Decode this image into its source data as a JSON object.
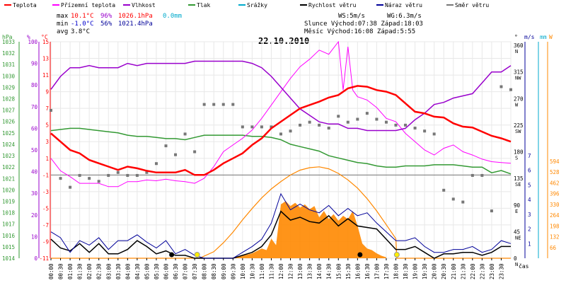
{
  "chart_data": {
    "type": "line",
    "title": "22.10.2010",
    "xlabel": "čas",
    "legend": [
      {
        "name": "Teplota",
        "color": "#ff0000"
      },
      {
        "name": "Přízemní teplota",
        "color": "#ff00ff"
      },
      {
        "name": "Vlhkost",
        "color": "#9900cc"
      },
      {
        "name": "Tlak",
        "color": "#339933"
      },
      {
        "name": "Srážky",
        "color": "#00aacc"
      },
      {
        "name": "Rychlost větru",
        "color": "#000000"
      },
      {
        "name": "Náraz větru",
        "color": "#000099"
      },
      {
        "name": "Směr větru",
        "color": "#777777"
      }
    ],
    "stats": {
      "max": {
        "label": "max",
        "temp": "10.1°C",
        "hum": "96%",
        "press": "1026.1hPa",
        "rain": "0.0mm"
      },
      "min": {
        "label": "min",
        "temp": "-1.0°C",
        "hum": "56%",
        "press": "1021.4hPa"
      },
      "avg": {
        "label": "avg",
        "temp": "3.8°C"
      }
    },
    "info": {
      "ws": "WS:5m/s",
      "wg": "WG:6.3m/s",
      "sun": "Slunce Východ:07:38  Západ:18:03",
      "moon": "Měsíc  Východ:16:08  Západ:5:55"
    },
    "axes_units": {
      "press": "hPa",
      "hum": "%",
      "temp": "°C",
      "dir": "°",
      "wind": "m/s",
      "rain": "mm",
      "solar": "W"
    },
    "axis_ticks": {
      "press": [
        "1033",
        "1032",
        "1031",
        "1030",
        "1029",
        "1028",
        "1027",
        "1026",
        "1025",
        "1024",
        "1023",
        "1022",
        "1021",
        "1020",
        "1019",
        "1018",
        "1017",
        "1016",
        "1015",
        "1014"
      ],
      "hum": [
        "100",
        "90",
        "80",
        "70",
        "60",
        "50",
        "40",
        "30",
        "20",
        "10",
        "0"
      ],
      "temp": [
        "15",
        "13",
        "11",
        "9",
        "7",
        "5",
        "3",
        "1",
        "-1",
        "-3",
        "-5",
        "-7",
        "-9",
        "-11"
      ],
      "dir": [
        "360 N",
        "315 NW",
        "270 W",
        "225 SW",
        "180 S",
        "135 SE",
        "90 E",
        "45 NE",
        "0 N"
      ],
      "wind": [
        "7",
        "6",
        "5",
        "4",
        "3",
        "2",
        "1"
      ],
      "solar": [
        "594",
        "528",
        "462",
        "396",
        "330",
        "264",
        "198",
        "132",
        "66"
      ]
    },
    "x_ticks": [
      "00:00",
      "00:30",
      "01:00",
      "01:30",
      "02:00",
      "02:30",
      "03:00",
      "03:30",
      "04:00",
      "04:30",
      "05:00",
      "05:30",
      "06:00",
      "06:30",
      "07:00",
      "07:30",
      "08:00",
      "08:30",
      "09:00",
      "09:30",
      "10:00",
      "10:30",
      "11:00",
      "11:30",
      "12:00",
      "12:30",
      "13:00",
      "13:30",
      "14:00",
      "14:30",
      "15:00",
      "15:30",
      "16:00",
      "16:30",
      "17:00",
      "17:30",
      "18:00",
      "18:30",
      "19:00",
      "19:30",
      "20:00",
      "20:30",
      "21:00",
      "21:30",
      "22:00",
      "22:30",
      "23:00",
      "23:30"
    ],
    "temp_range": [
      -11,
      15
    ],
    "series": [
      {
        "key": "temp",
        "color": "#ff0000",
        "x": [
          0,
          0.5,
          1,
          1.5,
          2,
          2.5,
          3,
          3.5,
          4,
          4.5,
          5,
          5.5,
          6,
          6.5,
          7,
          7.5,
          8,
          8.5,
          9,
          9.5,
          10,
          10.5,
          11,
          11.5,
          12,
          12.5,
          13,
          13.5,
          14,
          14.5,
          15,
          15.5,
          16,
          16.5,
          17,
          17.5,
          18,
          18.5,
          19,
          19.5,
          20,
          20.5,
          21,
          21.5,
          22,
          22.5,
          23,
          23.5,
          24
        ],
        "y": [
          4,
          3,
          2,
          1.6,
          0.8,
          0.4,
          0,
          -0.4,
          0,
          -0.2,
          -0.5,
          -0.7,
          -0.7,
          -0.7,
          -0.4,
          -1,
          -1,
          -0.4,
          0.4,
          1,
          1.6,
          2.6,
          3.4,
          4.6,
          5.4,
          6.2,
          7,
          7.4,
          7.8,
          8.3,
          8.6,
          9.4,
          9.7,
          9.6,
          9.2,
          9,
          8.6,
          7.6,
          6.6,
          6.4,
          6,
          5.9,
          5.2,
          4.8,
          4.7,
          4.2,
          3.7,
          3.4,
          3
        ]
      },
      {
        "key": "ground",
        "color": "#ff00ff",
        "x": [
          0,
          0.5,
          1,
          1.5,
          2,
          2.5,
          3,
          3.5,
          4,
          4.5,
          5,
          5.5,
          6,
          6.5,
          7,
          7.5,
          8,
          8.5,
          9,
          9.5,
          10,
          10.5,
          11,
          11.5,
          12,
          12.5,
          13,
          13.5,
          14,
          14.5,
          15,
          15.25,
          15.5,
          15.75,
          16,
          16.5,
          17,
          17.5,
          18,
          18.5,
          19,
          19.5,
          20,
          20.5,
          21,
          21.5,
          22,
          22.5,
          23,
          23.5,
          24
        ],
        "y": [
          1,
          -0.5,
          -1.2,
          -2,
          -2,
          -2,
          -2.4,
          -2.4,
          -1.8,
          -1.8,
          -1.6,
          -1.7,
          -1.5,
          -1.7,
          -1.8,
          -2,
          -1.4,
          0,
          1.8,
          2.6,
          3.4,
          4.4,
          5.8,
          7.4,
          9,
          10.6,
          12,
          12.9,
          14,
          13.5,
          15,
          9.2,
          14.4,
          9.2,
          8.4,
          8,
          7.1,
          5.8,
          5.4,
          4,
          3,
          2,
          1.4,
          2.2,
          2.6,
          1.8,
          1.4,
          0.9,
          0.6,
          0.5,
          0.4
        ]
      },
      {
        "key": "hum",
        "color": "#9900cc",
        "x": [
          0,
          0.5,
          1,
          1.5,
          2,
          2.5,
          3,
          3.5,
          4,
          4.5,
          5,
          5.5,
          6,
          6.5,
          7,
          7.5,
          8,
          8.5,
          9,
          9.5,
          10,
          10.5,
          11,
          11.5,
          12,
          12.5,
          13,
          13.5,
          14,
          14.5,
          15,
          15.5,
          16,
          16.5,
          17,
          17.5,
          18,
          18.5,
          19,
          19.5,
          20,
          20.5,
          21,
          21.5,
          22,
          22.5,
          23,
          23.5,
          24
        ],
        "y": [
          78,
          84,
          88,
          88,
          89,
          88,
          88,
          88,
          90,
          89,
          90,
          90,
          90,
          90,
          90,
          91,
          91,
          91,
          91,
          91,
          91,
          90,
          88,
          84,
          79,
          74,
          69,
          66,
          63,
          62,
          62,
          60,
          60,
          59,
          59,
          59,
          59,
          60,
          64,
          67,
          71,
          72,
          74,
          75,
          76,
          81,
          86,
          86,
          89
        ]
      },
      {
        "key": "press",
        "color": "#339933",
        "x": [
          0,
          0.5,
          1,
          1.5,
          2,
          2.5,
          3,
          3.5,
          4,
          4.5,
          5,
          5.5,
          6,
          6.5,
          7,
          7.5,
          8,
          8.5,
          9,
          9.5,
          10,
          10.5,
          11,
          11.5,
          12,
          12.5,
          13,
          13.5,
          14,
          14.5,
          15,
          15.5,
          16,
          16.5,
          17,
          17.5,
          18,
          18.5,
          19,
          19.5,
          20,
          20.5,
          21,
          21.5,
          22,
          22.5,
          23,
          23.5,
          24
        ],
        "y": [
          1025.2,
          1025.3,
          1025.4,
          1025.4,
          1025.3,
          1025.2,
          1025.1,
          1025.0,
          1024.8,
          1024.7,
          1024.7,
          1024.6,
          1024.5,
          1024.5,
          1024.4,
          1024.6,
          1024.8,
          1024.8,
          1024.8,
          1024.8,
          1024.8,
          1024.7,
          1024.7,
          1024.6,
          1024.4,
          1024.0,
          1023.8,
          1023.6,
          1023.4,
          1023.0,
          1022.8,
          1022.6,
          1022.4,
          1022.3,
          1022.1,
          1022.0,
          1022.0,
          1022.1,
          1022.1,
          1022.1,
          1022.2,
          1022.2,
          1022.2,
          1022.1,
          1022.0,
          1022.0,
          1021.5,
          1021.7,
          1021.4
        ]
      },
      {
        "key": "wind",
        "color": "#000000",
        "x": [
          0,
          0.5,
          1,
          1.5,
          2,
          2.5,
          3,
          3.5,
          4,
          4.5,
          5,
          5.5,
          6,
          6.5,
          7,
          7.5,
          8,
          8.5,
          9,
          9.5,
          10,
          10.5,
          11,
          11.5,
          12,
          12.5,
          13,
          13.5,
          14,
          14.5,
          15,
          15.5,
          16,
          16.5,
          17,
          17.5,
          18,
          18.5,
          19,
          19.5,
          20,
          20.5,
          21,
          21.5,
          22,
          22.5,
          23,
          23.5,
          24
        ],
        "y": [
          1.3,
          0.7,
          0.5,
          1.0,
          0.4,
          1.0,
          0.3,
          0.3,
          0.6,
          1.2,
          0.8,
          0.3,
          0.5,
          0.2,
          0.2,
          0,
          0,
          0,
          0,
          0,
          0.2,
          0.4,
          0.8,
          1.6,
          3.2,
          2.6,
          2.8,
          2.5,
          2.4,
          2.9,
          2.2,
          2.7,
          2.2,
          2.1,
          2.0,
          1.3,
          0.6,
          0.6,
          0.8,
          0.4,
          0,
          0.3,
          0.3,
          0.4,
          0.4,
          0.2,
          0.4,
          0.8,
          0.8
        ]
      },
      {
        "key": "gust",
        "color": "#000099",
        "x": [
          0,
          0.5,
          1,
          1.5,
          2,
          2.5,
          3,
          3.5,
          4,
          4.5,
          5,
          5.5,
          6,
          6.5,
          7,
          7.5,
          8,
          8.5,
          9,
          9.5,
          10,
          10.5,
          11,
          11.5,
          12,
          12.5,
          13,
          13.5,
          14,
          14.5,
          15,
          15.5,
          16,
          16.5,
          17,
          17.5,
          18,
          18.5,
          19,
          19.5,
          20,
          20.5,
          21,
          21.5,
          22,
          22.5,
          23,
          23.5,
          24
        ],
        "y": [
          1.8,
          1.4,
          0.4,
          1.2,
          0.9,
          1.4,
          0.6,
          1.2,
          1.2,
          1.6,
          1.1,
          0.7,
          1.2,
          0.3,
          0.6,
          0.2,
          0,
          0,
          0,
          0,
          0.4,
          0.8,
          1.3,
          2.4,
          4.4,
          3.3,
          3.7,
          3.3,
          3.1,
          3.6,
          2.9,
          3.4,
          2.9,
          3.1,
          2.4,
          1.8,
          1.2,
          1.2,
          1.4,
          0.8,
          0.4,
          0.4,
          0.6,
          0.6,
          0.8,
          0.4,
          0.6,
          1.2,
          1.0
        ]
      },
      {
        "key": "dir",
        "color": "#777777",
        "x": [
          0,
          0.5,
          1,
          1.5,
          2,
          2.5,
          3,
          3.5,
          4,
          4.5,
          5,
          5.5,
          6,
          6.5,
          7,
          7.5,
          8,
          8.5,
          9,
          9.5,
          10,
          10.5,
          11,
          11.5,
          12,
          12.5,
          13,
          13.5,
          14,
          14.5,
          15,
          15.5,
          16,
          16.5,
          17,
          17.5,
          18,
          18.5,
          19,
          19.5,
          20,
          20.5,
          21,
          21.5,
          22,
          22.5,
          23,
          23.5,
          24
        ],
        "y": [
          250,
          135,
          120,
          140,
          135,
          130,
          140,
          145,
          140,
          140,
          145,
          160,
          190,
          175,
          210,
          180,
          260,
          260,
          260,
          260,
          222,
          222,
          222,
          222,
          210,
          215,
          225,
          230,
          225,
          220,
          240,
          230,
          235,
          245,
          235,
          230,
          225,
          225,
          220,
          215,
          210,
          115,
          100,
          95,
          140,
          140,
          80,
          290,
          285
        ]
      },
      {
        "key": "solar",
        "color": "#ff8800",
        "x": [
          0,
          7.75,
          8.5,
          9,
          9.5,
          10,
          10.5,
          11,
          11.5,
          12,
          12.5,
          13,
          13.5,
          14,
          14.5,
          15,
          15.5,
          16,
          16.5,
          17,
          17.5,
          18,
          18.05,
          24
        ],
        "y": [
          0,
          0,
          40,
          95,
          160,
          235,
          305,
          370,
          425,
          470,
          510,
          540,
          555,
          560,
          548,
          520,
          480,
          430,
          365,
          290,
          205,
          120,
          0,
          0
        ]
      },
      {
        "key": "solar_meas",
        "color": "#ff8800",
        "x": [
          9.5,
          10,
          10.5,
          11,
          11.25,
          11.5,
          11.75,
          12,
          12.25,
          12.5,
          12.75,
          13,
          13.25,
          13.5,
          13.75,
          14,
          14.25,
          14.5,
          14.75,
          15,
          15.25,
          15.5,
          15.75,
          16,
          16.25,
          16.5,
          16.75,
          17,
          17.25,
          17.5
        ],
        "y": [
          5,
          15,
          30,
          60,
          50,
          120,
          80,
          330,
          350,
          320,
          340,
          310,
          330,
          300,
          320,
          250,
          290,
          240,
          270,
          230,
          260,
          240,
          290,
          200,
          90,
          60,
          50,
          30,
          15,
          5
        ]
      }
    ]
  }
}
